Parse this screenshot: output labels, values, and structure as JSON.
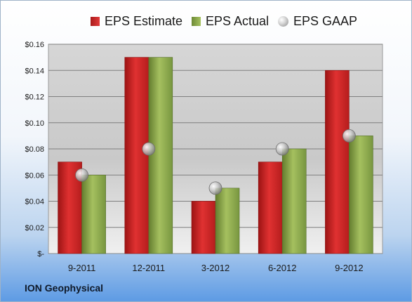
{
  "legend": {
    "estimate": "EPS Estimate",
    "actual": "EPS Actual",
    "gaap": "EPS GAAP"
  },
  "footer": {
    "company": "ION Geophysical"
  },
  "colors": {
    "estimate": "#c62828",
    "actual": "#8aab4a",
    "gaap": "#b5b5b5"
  },
  "chart_data": {
    "type": "bar",
    "title": "",
    "xlabel": "",
    "ylabel": "",
    "categories": [
      "9-2011",
      "12-2011",
      "3-2012",
      "6-2012",
      "9-2012"
    ],
    "series": [
      {
        "name": "EPS Estimate",
        "type": "bar",
        "values": [
          0.07,
          0.15,
          0.04,
          0.07,
          0.14
        ]
      },
      {
        "name": "EPS Actual",
        "type": "bar",
        "values": [
          0.06,
          0.15,
          0.05,
          0.08,
          0.09
        ]
      },
      {
        "name": "EPS GAAP",
        "type": "scatter",
        "values": [
          0.06,
          0.08,
          0.05,
          0.08,
          0.09
        ]
      }
    ],
    "ylim": [
      0,
      0.16
    ],
    "yticks": [
      0,
      0.02,
      0.04,
      0.06,
      0.08,
      0.1,
      0.12,
      0.14,
      0.16
    ],
    "ytick_labels": [
      "$-",
      "$0.02",
      "$0.04",
      "$0.06",
      "$0.08",
      "$0.10",
      "$0.12",
      "$0.14",
      "$0.16"
    ],
    "grid": true,
    "legend_position": "top"
  }
}
